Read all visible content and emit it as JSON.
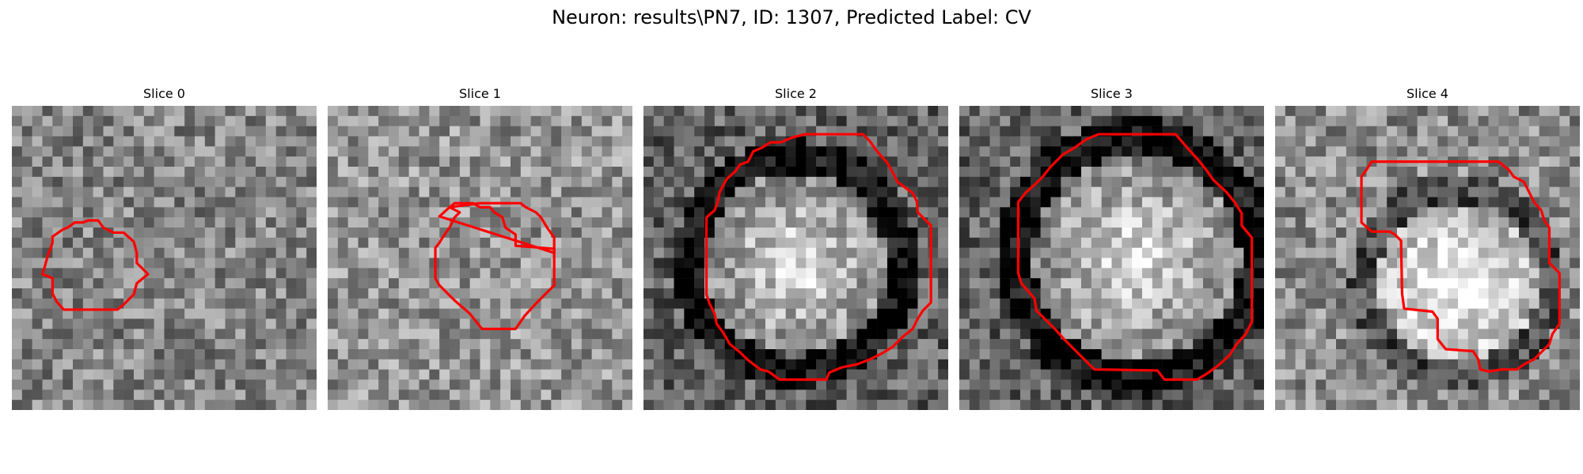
{
  "title": "Neuron: results\\PN7, ID: 1307, Predicted Label: CV",
  "contour_color": "#ff0000",
  "slices": [
    {
      "label": "Slice 0",
      "brightness": 0.52,
      "blob": null,
      "ring_dark": 0.0
    },
    {
      "label": "Slice 1",
      "brightness": 0.58,
      "blob": null,
      "ring_dark": 0.0
    },
    {
      "label": "Slice 2",
      "brightness": 0.38,
      "blob": [
        0.5,
        0.52,
        0.3
      ],
      "ring_dark": 0.35
    },
    {
      "label": "Slice 3",
      "brightness": 0.38,
      "blob": [
        0.58,
        0.5,
        0.34
      ],
      "ring_dark": 0.35
    },
    {
      "label": "Slice 4",
      "brightness": 0.55,
      "blob": [
        0.6,
        0.58,
        0.26
      ],
      "ring_dark": 0.25
    }
  ]
}
